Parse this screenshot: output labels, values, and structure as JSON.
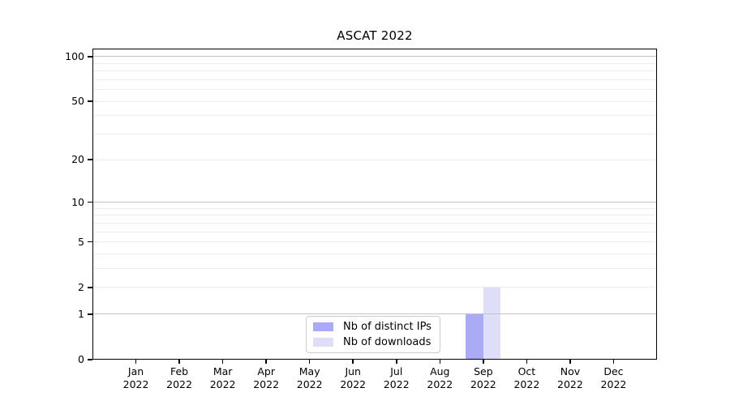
{
  "chart_data": {
    "type": "bar",
    "title": "ASCAT 2022",
    "categories": [
      "Jan",
      "Feb",
      "Mar",
      "Apr",
      "May",
      "Jun",
      "Jul",
      "Aug",
      "Sep",
      "Oct",
      "Nov",
      "Dec"
    ],
    "x_year_label": "2022",
    "series": [
      {
        "id": "distinct-ips",
        "name": "Nb of distinct IPs",
        "color": "#aaaaf7",
        "values": [
          0,
          0,
          0,
          0,
          0,
          0,
          0,
          0,
          1,
          0,
          0,
          0
        ]
      },
      {
        "id": "downloads",
        "name": "Nb of downloads",
        "color": "#dedef8",
        "values": [
          0,
          0,
          0,
          0,
          0,
          0,
          0,
          0,
          2,
          0,
          0,
          0
        ]
      }
    ],
    "yscale": "log1p",
    "ylim": [
      0,
      113
    ],
    "y_tick_values": [
      0,
      1,
      2,
      5,
      10,
      20,
      50,
      100
    ],
    "y_tick_labels": [
      "0",
      "1",
      "2",
      "5",
      "10",
      "20",
      "50",
      "100"
    ],
    "y_major_gridlines": [
      1,
      10,
      100
    ],
    "y_minor_gridlines": [
      2,
      3,
      4,
      5,
      6,
      7,
      8,
      9,
      20,
      30,
      40,
      50,
      60,
      70,
      80,
      90
    ],
    "grid": true,
    "legend_position": "lower center"
  },
  "colors": {
    "background": "#ffffff",
    "axis": "#000000",
    "major_grid": "#c3c3c3",
    "minor_grid": "#ececec",
    "legend_border": "#cccccc"
  }
}
